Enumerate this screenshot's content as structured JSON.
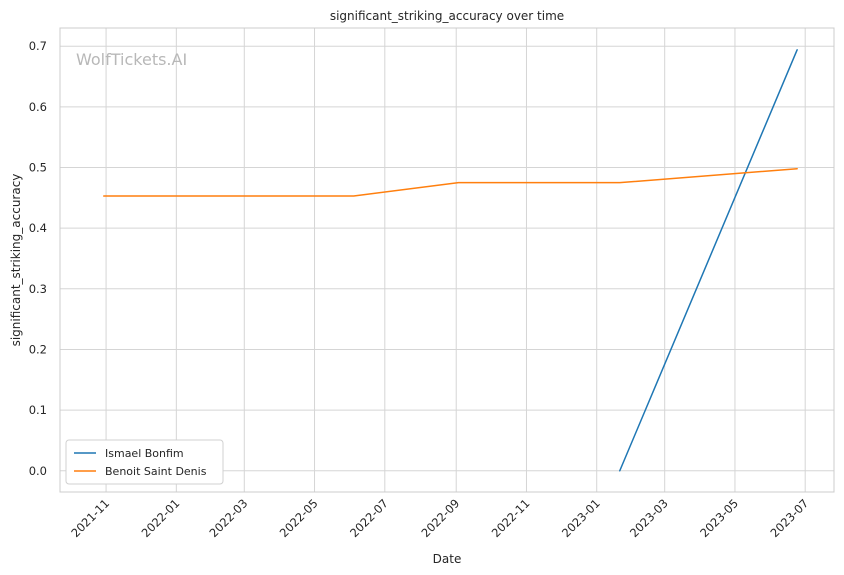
{
  "chart_data": {
    "type": "line",
    "title": "significant_striking_accuracy over time",
    "xlabel": "Date",
    "ylabel": "significant_striking_accuracy",
    "watermark": "WolfTickets.AI",
    "x_axis": {
      "kind": "date",
      "range": [
        "2021-09-22",
        "2023-07-26"
      ],
      "ticks": [
        "2021-11-01",
        "2022-01-01",
        "2022-03-01",
        "2022-05-01",
        "2022-07-01",
        "2022-09-01",
        "2022-11-01",
        "2023-01-01",
        "2023-03-01",
        "2023-05-01",
        "2023-07-01"
      ],
      "tick_labels": [
        "2021-11",
        "2022-01",
        "2022-03",
        "2022-05",
        "2022-07",
        "2022-09",
        "2022-11",
        "2023-01",
        "2023-03",
        "2023-05",
        "2023-07"
      ]
    },
    "y_axis": {
      "range": [
        -0.035,
        0.73
      ],
      "ticks": [
        0.0,
        0.1,
        0.2,
        0.3,
        0.4,
        0.5,
        0.6,
        0.7
      ],
      "tick_labels": [
        "0.0",
        "0.1",
        "0.2",
        "0.3",
        "0.4",
        "0.5",
        "0.6",
        "0.7"
      ]
    },
    "grid": true,
    "legend_position": "bottom-left",
    "series": [
      {
        "name": "Ismael Bonfim",
        "color": "#1f77b4",
        "x": [
          "2023-01-21",
          "2023-06-24"
        ],
        "y": [
          0.0,
          0.694
        ]
      },
      {
        "name": "Benoit Saint Denis",
        "color": "#ff7f0e",
        "x": [
          "2021-10-30",
          "2022-06-04",
          "2022-09-03",
          "2023-01-21",
          "2023-06-24"
        ],
        "y": [
          0.453,
          0.453,
          0.475,
          0.475,
          0.498
        ]
      }
    ]
  }
}
